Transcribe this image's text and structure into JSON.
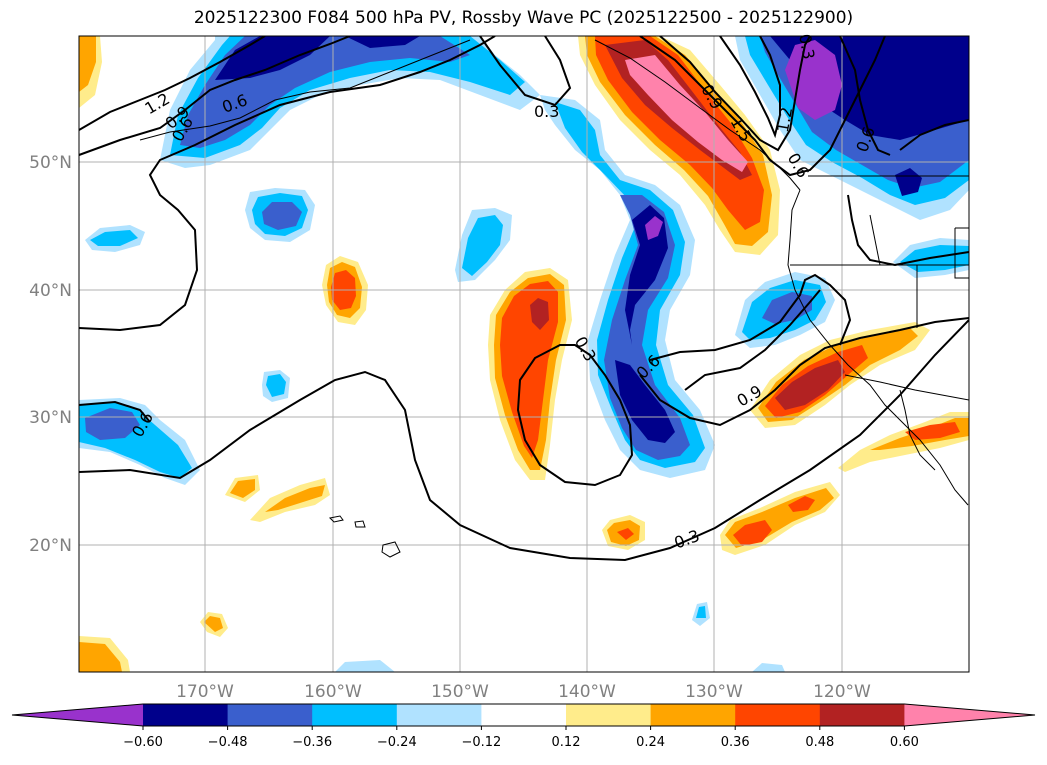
{
  "title": "2025122300 F084 500 hPa PV, Rossby Wave PC (2025122500 - 2025122900)",
  "map": {
    "lat_ticks": [
      "50°N",
      "40°N",
      "30°N",
      "20°N"
    ],
    "lon_ticks": [
      "170°W",
      "160°W",
      "150°W",
      "140°W",
      "130°W",
      "120°W"
    ],
    "contour_labels": [
      "1.2",
      "0.9",
      "0.6",
      "0.3",
      "0.3",
      "0.6",
      "0.9",
      "0.6",
      "0.3",
      "0.6",
      "0.9",
      "1.2",
      "1.5",
      "0.6",
      "0.6",
      "0.3"
    ]
  },
  "colorbar": {
    "ticks": [
      "−0.60",
      "−0.48",
      "−0.36",
      "−0.24",
      "−0.12",
      "0.12",
      "0.24",
      "0.36",
      "0.48",
      "0.60"
    ],
    "colors": [
      "#9932CC",
      "#00008B",
      "#3A5FCD",
      "#00BFFF",
      "#B0E2FF",
      "#FFFFFF",
      "#FFEC8B",
      "#FFA500",
      "#FF4500",
      "#B22222",
      "#FF82AB"
    ]
  }
}
